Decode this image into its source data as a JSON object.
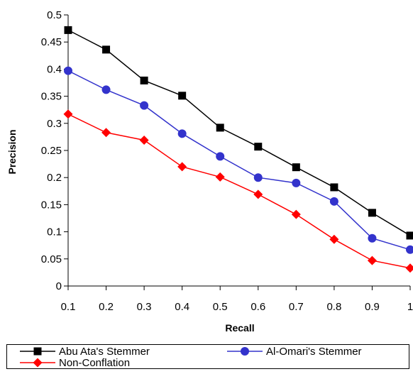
{
  "chart_data": {
    "type": "line",
    "title": "",
    "xlabel": "Recall",
    "ylabel": "Precision",
    "x": [
      0.1,
      0.2,
      0.3,
      0.4,
      0.5,
      0.6,
      0.7,
      0.8,
      0.9,
      1
    ],
    "x_tick_labels": [
      "0.1",
      "0.2",
      "0.3",
      "0.4",
      "0.5",
      "0.6",
      "0.7",
      "0.8",
      "0.9",
      "1"
    ],
    "y_ticks": [
      0,
      0.05,
      0.1,
      0.15,
      0.2,
      0.25,
      0.3,
      0.35,
      0.4,
      0.45,
      0.5
    ],
    "y_tick_labels": [
      "0",
      "0.05",
      "0.1",
      "0.15",
      "0.2",
      "0.25",
      "0.3",
      "0.35",
      "0.4",
      "0.45",
      "0.5"
    ],
    "ylim": [
      0,
      0.5
    ],
    "grid": false,
    "legend_position": "bottom",
    "series": [
      {
        "name": "Abu Ata's Stemmer",
        "color": "#000000",
        "marker": "square",
        "values": [
          0.472,
          0.436,
          0.379,
          0.351,
          0.292,
          0.257,
          0.219,
          0.182,
          0.135,
          0.093
        ]
      },
      {
        "name": "Al-Omari's Stemmer",
        "color": "#3333cc",
        "marker": "circle",
        "values": [
          0.397,
          0.362,
          0.333,
          0.281,
          0.239,
          0.2,
          0.19,
          0.156,
          0.088,
          0.067
        ]
      },
      {
        "name": "Non-Conflation",
        "color": "#ff0000",
        "marker": "diamond",
        "values": [
          0.317,
          0.283,
          0.269,
          0.22,
          0.201,
          0.169,
          0.132,
          0.086,
          0.047,
          0.033
        ]
      }
    ]
  }
}
